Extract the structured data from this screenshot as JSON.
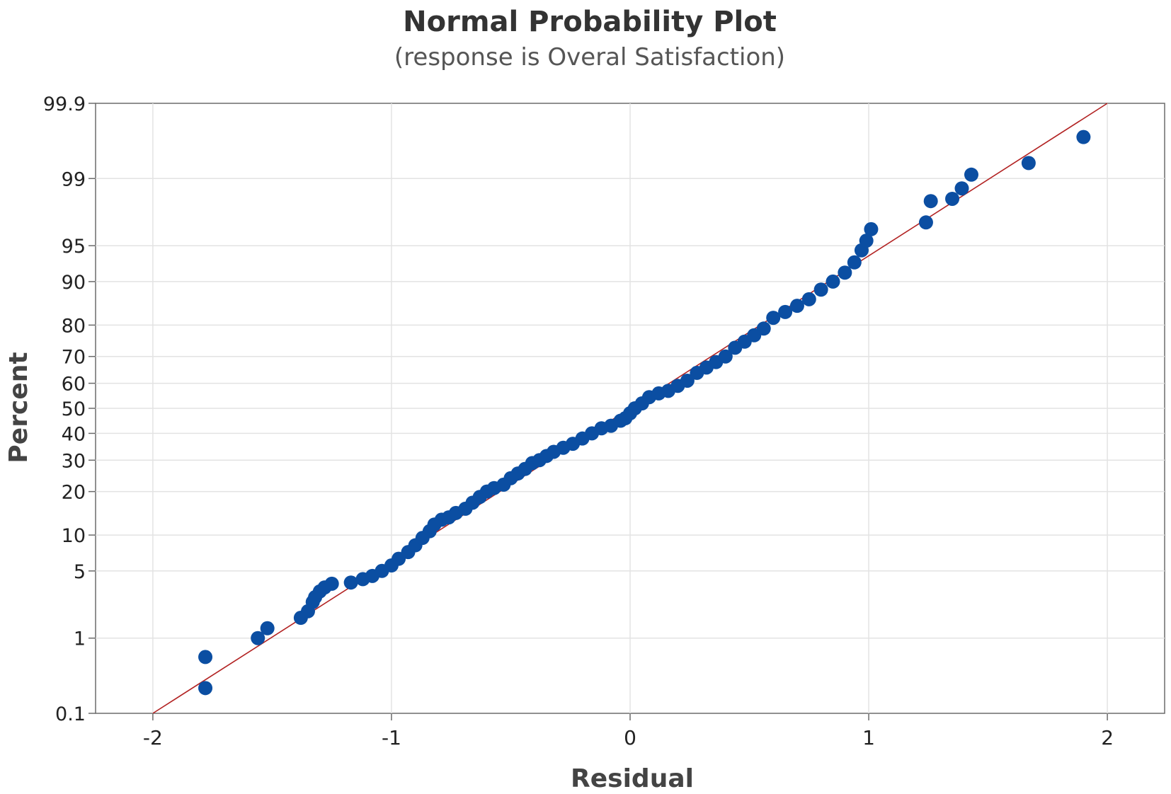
{
  "chart_data": {
    "type": "scatter",
    "title": "Normal Probability Plot",
    "subtitle": "(response is Overal Satisfaction)",
    "xlabel": "Residual",
    "ylabel": "Percent",
    "xlim": [
      -2.24,
      2.24
    ],
    "ylim": [
      0.1,
      99.9
    ],
    "y_scale": "normal-probability",
    "grid": true,
    "x_ticks": [
      -2,
      -1,
      0,
      1,
      2
    ],
    "x_tick_labels": [
      "-2",
      "-1",
      "0",
      "1",
      "2"
    ],
    "y_ticks": [
      0.1,
      1,
      5,
      10,
      20,
      30,
      40,
      50,
      60,
      70,
      80,
      90,
      95,
      99,
      99.9
    ],
    "y_tick_labels": [
      "0.1",
      "1",
      "5",
      "10",
      "20",
      "30",
      "40",
      "50",
      "60",
      "70",
      "80",
      "90",
      "95",
      "99",
      "99.9"
    ],
    "fit_line": {
      "x": [
        -2.0,
        2.0
      ],
      "y": [
        0.1,
        99.9
      ],
      "color": "#b22222"
    },
    "point_color": "#0b4ea2",
    "series": [
      {
        "x": [
          -1.78,
          -1.78,
          -1.56,
          -1.52,
          -1.38,
          -1.35,
          -1.33,
          -1.32,
          -1.3,
          -1.28,
          -1.25,
          -1.17,
          -1.12,
          -1.08,
          -1.04,
          -1.0,
          -0.97,
          -0.93,
          -0.9,
          -0.87,
          -0.84,
          -0.82,
          -0.79,
          -0.76,
          -0.73,
          -0.69,
          -0.66,
          -0.63,
          -0.6,
          -0.57,
          -0.53,
          -0.5,
          -0.47,
          -0.44,
          -0.41,
          -0.38,
          -0.35,
          -0.32,
          -0.28,
          -0.24,
          -0.2,
          -0.16,
          -0.12,
          -0.08,
          -0.04,
          -0.02,
          0.0,
          0.02,
          0.05,
          0.08,
          0.12,
          0.16,
          0.2,
          0.24,
          0.28,
          0.32,
          0.36,
          0.4,
          0.44,
          0.48,
          0.52,
          0.56,
          0.6,
          0.65,
          0.7,
          0.75,
          0.8,
          0.85,
          0.9,
          0.94,
          0.97,
          0.99,
          1.01,
          1.24,
          1.26,
          1.35,
          1.39,
          1.43,
          1.67,
          1.9
        ],
        "y": [
          0.23,
          0.59,
          1.0,
          1.3,
          1.7,
          2.0,
          2.5,
          2.8,
          3.2,
          3.5,
          3.8,
          3.9,
          4.2,
          4.5,
          5.0,
          5.6,
          6.4,
          7.3,
          8.3,
          9.5,
          10.7,
          12.0,
          13.0,
          13.5,
          14.5,
          15.5,
          17.0,
          18.5,
          20.0,
          21.0,
          22.0,
          24.0,
          25.5,
          27.0,
          29.0,
          30.0,
          31.5,
          33.0,
          34.5,
          36.0,
          38.0,
          40.0,
          42.0,
          43.0,
          45.0,
          46.0,
          48.0,
          50.0,
          52.0,
          54.5,
          56.0,
          57.0,
          59.0,
          61.0,
          64.0,
          66.0,
          68.0,
          70.0,
          73.0,
          75.0,
          77.0,
          79.0,
          82.0,
          83.5,
          85.0,
          86.5,
          88.5,
          90.0,
          91.5,
          93.0,
          94.5,
          95.5,
          96.5,
          97.0,
          98.2,
          98.3,
          98.7,
          99.1,
          99.35,
          99.7
        ]
      }
    ]
  }
}
